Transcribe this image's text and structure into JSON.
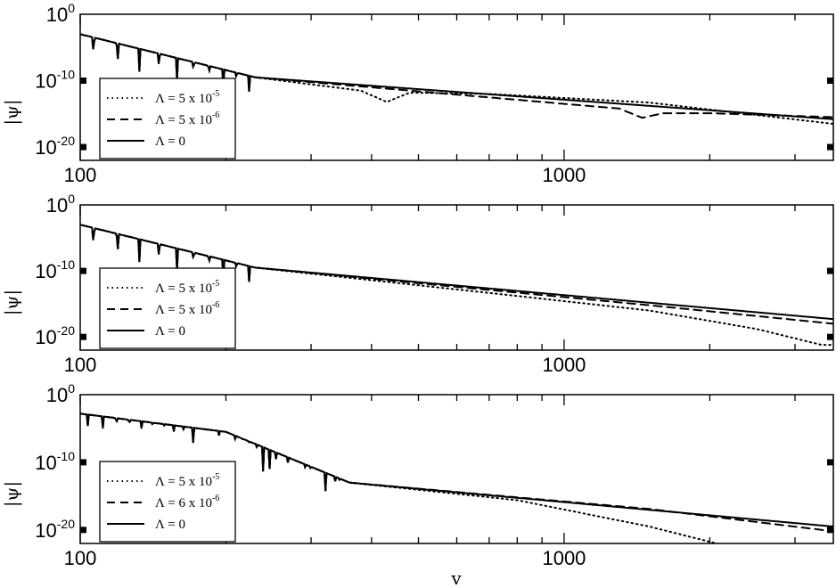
{
  "chart_data": {
    "type": "line",
    "xlabel": "v",
    "x_scale": "log",
    "y_scale": "log",
    "xlim": [
      100,
      3600
    ],
    "ylim_log10": [
      -22,
      0
    ],
    "xticks": [
      {
        "value": 100,
        "label": "100"
      },
      {
        "value": 1000,
        "label": "1000"
      }
    ],
    "yticks": [
      {
        "value": 1,
        "base": "10",
        "exp": "0"
      },
      {
        "value": 1e-10,
        "base": "10",
        "exp": "-10"
      },
      {
        "value": 1e-20,
        "base": "10",
        "exp": "-20"
      }
    ],
    "panels": [
      {
        "ylabel": "|ψ|",
        "legend": [
          {
            "prefix": "Λ = 5 x 10",
            "exp": "-5",
            "style": "dotted"
          },
          {
            "prefix": "Λ = 5 x 10",
            "exp": "-6",
            "style": "dashed"
          },
          {
            "prefix": "Λ = 0",
            "exp": "",
            "style": "solid"
          }
        ],
        "series": [
          {
            "style": "solid",
            "osc_end": 230,
            "osc_env": [
              [
                100,
                -3
              ],
              [
                230,
                -9.5
              ]
            ],
            "tail": [
              [
                230,
                -9.5
              ],
              [
                3600,
                -15.8
              ]
            ]
          },
          {
            "style": "dashed",
            "osc_end": 230,
            "osc_env": [
              [
                100,
                -3
              ],
              [
                230,
                -9.5
              ]
            ],
            "tail": [
              [
                230,
                -9.5
              ],
              [
                1300,
                -14.2
              ],
              [
                1450,
                -15.6
              ],
              [
                1600,
                -14.9
              ],
              [
                2000,
                -14.9
              ],
              [
                3600,
                -15.5
              ]
            ]
          },
          {
            "style": "dotted",
            "osc_end": 230,
            "osc_env": [
              [
                100,
                -3
              ],
              [
                230,
                -9.5
              ]
            ],
            "tail": [
              [
                230,
                -9.5
              ],
              [
                380,
                -11.5
              ],
              [
                430,
                -13.2
              ],
              [
                480,
                -11.8
              ],
              [
                700,
                -12.0
              ],
              [
                1500,
                -13.3
              ],
              [
                3600,
                -16.5
              ]
            ]
          }
        ]
      },
      {
        "ylabel": "|ψ|",
        "legend": [
          {
            "prefix": "Λ = 5 x 10",
            "exp": "-5",
            "style": "dotted"
          },
          {
            "prefix": "Λ = 5 x 10",
            "exp": "-6",
            "style": "dashed"
          },
          {
            "prefix": "Λ = 0",
            "exp": "",
            "style": "solid"
          }
        ],
        "series": [
          {
            "style": "solid",
            "osc_end": 230,
            "osc_env": [
              [
                100,
                -3
              ],
              [
                230,
                -9.5
              ]
            ],
            "tail": [
              [
                230,
                -9.5
              ],
              [
                3600,
                -17.3
              ]
            ]
          },
          {
            "style": "dashed",
            "osc_end": 230,
            "osc_env": [
              [
                100,
                -3
              ],
              [
                230,
                -9.5
              ]
            ],
            "tail": [
              [
                230,
                -9.5
              ],
              [
                1500,
                -15.2
              ],
              [
                3600,
                -18.0
              ]
            ]
          },
          {
            "style": "dotted",
            "osc_end": 230,
            "osc_env": [
              [
                100,
                -3
              ],
              [
                230,
                -9.5
              ]
            ],
            "tail": [
              [
                230,
                -9.5
              ],
              [
                800,
                -13.8
              ],
              [
                1500,
                -16.0
              ],
              [
                2500,
                -18.8
              ],
              [
                3400,
                -21.2
              ]
            ]
          }
        ]
      },
      {
        "ylabel": "|ψ|",
        "legend": [
          {
            "prefix": "Λ = 5 x 10",
            "exp": "-5",
            "style": "dotted"
          },
          {
            "prefix": "Λ = 6 x 10",
            "exp": "-6",
            "style": "dashed"
          },
          {
            "prefix": "Λ = 0",
            "exp": "",
            "style": "solid"
          }
        ],
        "series": [
          {
            "style": "solid",
            "osc_end": 360,
            "osc_env": [
              [
                100,
                -2.8
              ],
              [
                200,
                -5.5
              ],
              [
                360,
                -13
              ]
            ],
            "tail": [
              [
                360,
                -13
              ],
              [
                3600,
                -19.5
              ]
            ]
          },
          {
            "style": "dashed",
            "osc_end": 360,
            "osc_env": [
              [
                100,
                -2.8
              ],
              [
                200,
                -5.5
              ],
              [
                360,
                -13
              ]
            ],
            "tail": [
              [
                360,
                -13
              ],
              [
                1500,
                -16.9
              ],
              [
                3600,
                -20.2
              ]
            ]
          },
          {
            "style": "dotted",
            "osc_end": 360,
            "osc_env": [
              [
                100,
                -2.8
              ],
              [
                200,
                -5.5
              ],
              [
                360,
                -13
              ]
            ],
            "tail": [
              [
                360,
                -13
              ],
              [
                800,
                -15.6
              ],
              [
                1500,
                -19.5
              ],
              [
                2500,
                -23.5
              ]
            ]
          }
        ]
      }
    ]
  }
}
